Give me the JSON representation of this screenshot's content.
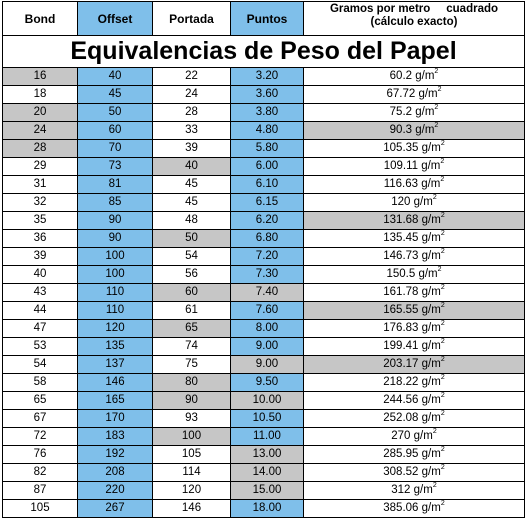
{
  "headers": {
    "bond": "Bond",
    "offset": "Offset",
    "portada": "Portada",
    "puntos": "Puntos",
    "gramos_line1": "Gramos por metro     cuadrado",
    "gramos_line2": "(cálculo exacto)"
  },
  "title": "Equivalencias de Peso del Papel",
  "unit": "g/m",
  "unit_exponent": "2",
  "colors": {
    "blue": "#7fbfea",
    "gray": "#c6c6c6"
  },
  "rows": [
    {
      "bond": "16",
      "offset": "40",
      "portada": "22",
      "puntos": "3.20",
      "gramos": "60.2",
      "hl": [
        "bond"
      ]
    },
    {
      "bond": "18",
      "offset": "45",
      "portada": "24",
      "puntos": "3.60",
      "gramos": "67.72",
      "hl": []
    },
    {
      "bond": "20",
      "offset": "50",
      "portada": "28",
      "puntos": "3.80",
      "gramos": "75.2",
      "hl": [
        "bond"
      ]
    },
    {
      "bond": "24",
      "offset": "60",
      "portada": "33",
      "puntos": "4.80",
      "gramos": "90.3",
      "hl": [
        "bond",
        "gramos"
      ]
    },
    {
      "bond": "28",
      "offset": "70",
      "portada": "39",
      "puntos": "5.80",
      "gramos": "105.35",
      "hl": [
        "bond"
      ]
    },
    {
      "bond": "29",
      "offset": "73",
      "portada": "40",
      "puntos": "6.00",
      "gramos": "109.11",
      "hl": [
        "portada"
      ]
    },
    {
      "bond": "31",
      "offset": "81",
      "portada": "45",
      "puntos": "6.10",
      "gramos": "116.63",
      "hl": []
    },
    {
      "bond": "32",
      "offset": "85",
      "portada": "45",
      "puntos": "6.15",
      "gramos": "120",
      "hl": []
    },
    {
      "bond": "35",
      "offset": "90",
      "portada": "48",
      "puntos": "6.20",
      "gramos": "131.68",
      "hl": [
        "gramos"
      ]
    },
    {
      "bond": "36",
      "offset": "90",
      "portada": "50",
      "puntos": "6.80",
      "gramos": "135.45",
      "hl": [
        "portada"
      ]
    },
    {
      "bond": "39",
      "offset": "100",
      "portada": "54",
      "puntos": "7.20",
      "gramos": "146.73",
      "hl": []
    },
    {
      "bond": "40",
      "offset": "100",
      "portada": "56",
      "puntos": "7.30",
      "gramos": "150.5",
      "hl": []
    },
    {
      "bond": "43",
      "offset": "110",
      "portada": "60",
      "puntos": "7.40",
      "gramos": "161.78",
      "hl": [
        "portada",
        "puntos"
      ]
    },
    {
      "bond": "44",
      "offset": "110",
      "portada": "61",
      "puntos": "7.60",
      "gramos": "165.55",
      "hl": [
        "gramos"
      ]
    },
    {
      "bond": "47",
      "offset": "120",
      "portada": "65",
      "puntos": "8.00",
      "gramos": "176.83",
      "hl": [
        "portada"
      ]
    },
    {
      "bond": "53",
      "offset": "135",
      "portada": "74",
      "puntos": "9.00",
      "gramos": "199.41",
      "hl": []
    },
    {
      "bond": "54",
      "offset": "137",
      "portada": "75",
      "puntos": "9.00",
      "gramos": "203.17",
      "hl": [
        "puntos",
        "gramos"
      ]
    },
    {
      "bond": "58",
      "offset": "146",
      "portada": "80",
      "puntos": "9.50",
      "gramos": "218.22",
      "hl": [
        "portada"
      ]
    },
    {
      "bond": "65",
      "offset": "165",
      "portada": "90",
      "puntos": "10.00",
      "gramos": "244.56",
      "hl": [
        "portada",
        "puntos"
      ]
    },
    {
      "bond": "67",
      "offset": "170",
      "portada": "93",
      "puntos": "10.50",
      "gramos": "252.08",
      "hl": []
    },
    {
      "bond": "72",
      "offset": "183",
      "portada": "100",
      "puntos": "11.00",
      "gramos": "270",
      "hl": [
        "portada"
      ]
    },
    {
      "bond": "76",
      "offset": "192",
      "portada": "105",
      "puntos": "13.00",
      "gramos": "285.95",
      "hl": [
        "puntos"
      ]
    },
    {
      "bond": "82",
      "offset": "208",
      "portada": "114",
      "puntos": "14.00",
      "gramos": "308.52",
      "hl": [
        "puntos"
      ]
    },
    {
      "bond": "87",
      "offset": "220",
      "portada": "120",
      "puntos": "15.00",
      "gramos": "312",
      "hl": [
        "puntos"
      ]
    },
    {
      "bond": "105",
      "offset": "267",
      "portada": "146",
      "puntos": "18.00",
      "gramos": "385.06",
      "hl": []
    }
  ]
}
